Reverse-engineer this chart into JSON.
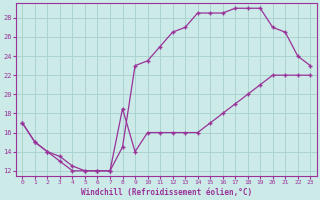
{
  "xlabel": "Windchill (Refroidissement éolien,°C)",
  "bg_color": "#cceae8",
  "grid_color": "#aad4d0",
  "line_color": "#993399",
  "xlim": [
    -0.5,
    23.5
  ],
  "ylim": [
    11.5,
    29.5
  ],
  "yticks": [
    12,
    14,
    16,
    18,
    20,
    22,
    24,
    26,
    28
  ],
  "xticks": [
    0,
    1,
    2,
    3,
    4,
    5,
    6,
    7,
    8,
    9,
    10,
    11,
    12,
    13,
    14,
    15,
    16,
    17,
    18,
    19,
    20,
    21,
    22,
    23
  ],
  "upper_x": [
    0,
    1,
    2,
    3,
    4,
    5,
    6,
    7,
    8,
    9,
    10,
    11,
    12,
    13,
    14,
    15,
    16,
    17,
    18,
    19,
    20,
    21,
    22,
    23
  ],
  "upper_y": [
    17,
    15,
    14,
    13.5,
    12.5,
    12,
    12,
    12,
    14.5,
    23,
    23.5,
    25,
    26.5,
    27,
    28.5,
    28.5,
    28.5,
    29,
    29,
    29,
    27,
    26.5,
    24,
    23
  ],
  "lower_x": [
    0,
    1,
    2,
    3,
    4,
    5,
    6,
    7,
    8,
    9,
    10,
    11,
    12,
    13,
    14,
    15,
    16,
    17,
    18,
    19,
    20,
    21,
    22,
    23
  ],
  "lower_y": [
    17,
    15,
    14,
    13,
    12,
    12,
    12,
    12,
    18.5,
    14,
    16,
    16,
    16,
    16,
    16,
    17,
    18,
    19,
    20,
    21,
    22,
    22,
    22,
    22
  ],
  "marker": "+"
}
